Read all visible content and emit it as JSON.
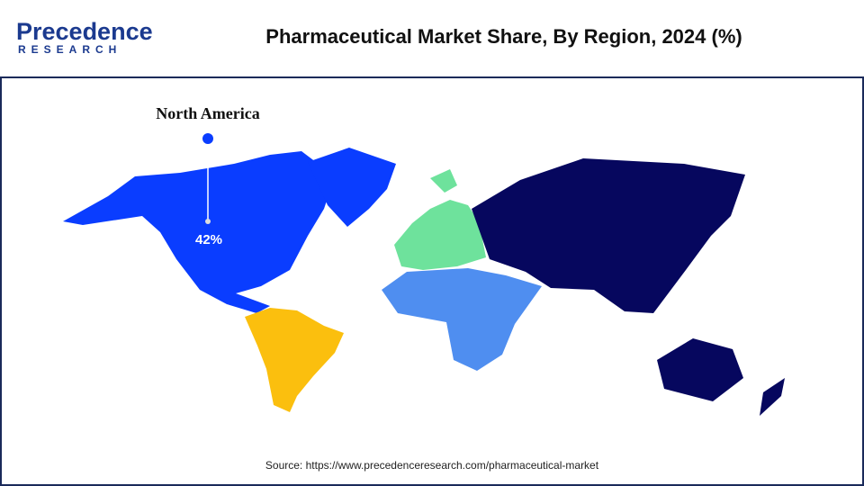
{
  "header": {
    "logo": {
      "name": "Precedence",
      "tagline": "RESEARCH"
    },
    "title": "Pharmaceutical Market Share, By Region, 2024 (%)"
  },
  "map": {
    "callout": {
      "region": "North America",
      "value": 42,
      "value_label": "42%"
    }
  },
  "source": "Source: https://www.precedenceresearch.com/pharmaceutical-market"
}
